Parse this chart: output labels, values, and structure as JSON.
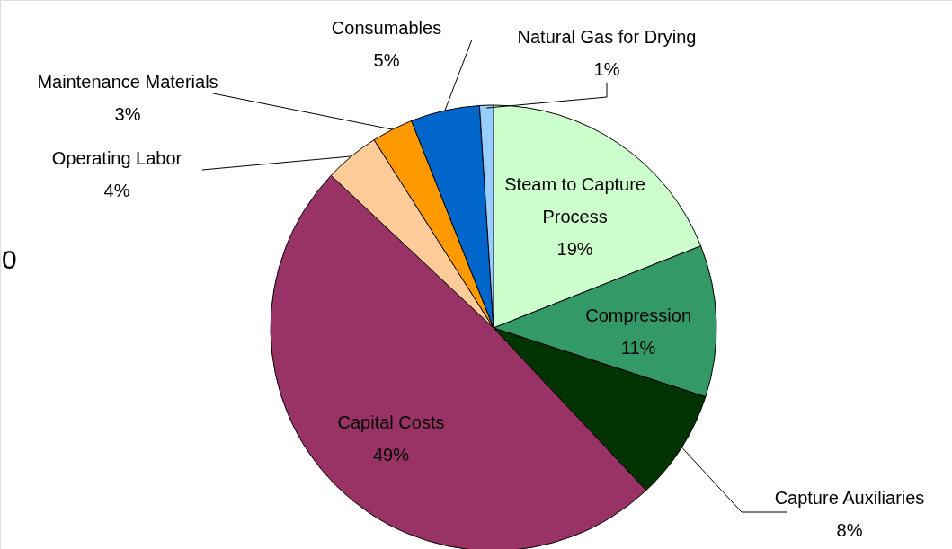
{
  "chart_data": {
    "type": "pie",
    "categories": [
      "Steam to Capture Process",
      "Compression",
      "Capture Auxiliaries",
      "Capital Costs",
      "Operating Labor",
      "Maintenance Materials",
      "Consumables",
      "Natural Gas for Drying"
    ],
    "values": [
      19,
      11,
      8,
      49,
      4,
      3,
      5,
      1
    ],
    "colors": [
      "#ccffcc",
      "#339966",
      "#003300",
      "#993366",
      "#ffcc99",
      "#ff9900",
      "#0066cc",
      "#99ccff"
    ],
    "value_labels": [
      "19%",
      "11%",
      "8%",
      "49%",
      "4%",
      "3%",
      "5%",
      "1%"
    ],
    "annotations": [
      "0"
    ]
  }
}
